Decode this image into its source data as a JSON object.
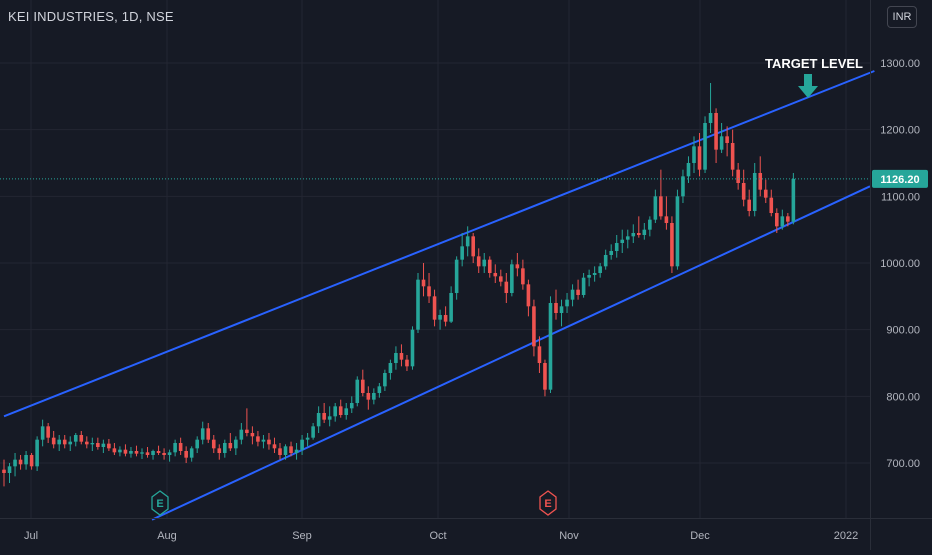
{
  "header": {
    "symbol_title": "KEI INDUSTRIES, 1D, NSE",
    "currency": "INR"
  },
  "colors": {
    "background": "#161a25",
    "up": "#26a69a",
    "down": "#ef5350",
    "channel": "#2962ff",
    "price_tag": "#26a69a",
    "grid": "#232632",
    "axis_text": "#b2b5be"
  },
  "chart_data": {
    "type": "candlestick",
    "title": "KEI INDUSTRIES, 1D, NSE",
    "ylim": [
      615,
      1330
    ],
    "y_ticks": [
      700,
      800,
      900,
      1000,
      1100,
      1200,
      1300
    ],
    "y_tick_labels": [
      "700.00",
      "800.00",
      "900.00",
      "1000.00",
      "1100.00",
      "1200.00",
      "1300.00"
    ],
    "x_labels": [
      "Jul",
      "Aug",
      "Sep",
      "Oct",
      "Nov",
      "Dec",
      "2022"
    ],
    "last_price": 1126.2,
    "last_price_label": "1126.20",
    "annotation": "TARGET LEVEL",
    "events": [
      {
        "label": "E",
        "month": "Aug",
        "type": "earnings"
      },
      {
        "label": "E",
        "month": "Nov",
        "type": "earnings"
      }
    ],
    "channel": {
      "upper": [
        {
          "idx": 0,
          "price": 770
        },
        {
          "idx": 145,
          "price": 1288
        }
      ],
      "lower": [
        {
          "idx": 25,
          "price": 615
        },
        {
          "idx": 145,
          "price": 1115
        }
      ]
    },
    "candles": [
      [
        690,
        705,
        665,
        685
      ],
      [
        685,
        700,
        670,
        695
      ],
      [
        695,
        715,
        680,
        705
      ],
      [
        705,
        712,
        690,
        698
      ],
      [
        698,
        718,
        690,
        712
      ],
      [
        712,
        715,
        690,
        695
      ],
      [
        695,
        740,
        688,
        735
      ],
      [
        735,
        765,
        725,
        755
      ],
      [
        755,
        760,
        730,
        738
      ],
      [
        738,
        748,
        722,
        728
      ],
      [
        728,
        742,
        718,
        735
      ],
      [
        735,
        742,
        722,
        728
      ],
      [
        728,
        740,
        718,
        732
      ],
      [
        732,
        745,
        725,
        742
      ],
      [
        742,
        748,
        728,
        732
      ],
      [
        732,
        740,
        722,
        728
      ],
      [
        728,
        738,
        718,
        730
      ],
      [
        730,
        738,
        720,
        724
      ],
      [
        724,
        735,
        715,
        729
      ],
      [
        729,
        736,
        718,
        722
      ],
      [
        722,
        730,
        712,
        716
      ],
      [
        716,
        725,
        710,
        720
      ],
      [
        720,
        728,
        710,
        714
      ],
      [
        714,
        724,
        708,
        718
      ],
      [
        718,
        726,
        710,
        714
      ],
      [
        714,
        722,
        706,
        716
      ],
      [
        716,
        724,
        708,
        712
      ],
      [
        712,
        720,
        705,
        718
      ],
      [
        718,
        726,
        712,
        715
      ],
      [
        715,
        722,
        705,
        712
      ],
      [
        712,
        720,
        702,
        716
      ],
      [
        716,
        735,
        710,
        730
      ],
      [
        730,
        738,
        712,
        718
      ],
      [
        718,
        725,
        700,
        708
      ],
      [
        708,
        725,
        702,
        722
      ],
      [
        722,
        740,
        715,
        735
      ],
      [
        735,
        762,
        728,
        752
      ],
      [
        752,
        760,
        730,
        735
      ],
      [
        735,
        742,
        715,
        722
      ],
      [
        722,
        728,
        705,
        715
      ],
      [
        715,
        735,
        708,
        730
      ],
      [
        730,
        745,
        718,
        722
      ],
      [
        722,
        740,
        712,
        735
      ],
      [
        735,
        760,
        728,
        750
      ],
      [
        750,
        782,
        740,
        745
      ],
      [
        745,
        755,
        728,
        740
      ],
      [
        740,
        748,
        725,
        732
      ],
      [
        732,
        742,
        722,
        735
      ],
      [
        735,
        745,
        720,
        728
      ],
      [
        728,
        738,
        715,
        722
      ],
      [
        722,
        730,
        705,
        712
      ],
      [
        712,
        728,
        705,
        725
      ],
      [
        725,
        732,
        710,
        715
      ],
      [
        715,
        730,
        705,
        720
      ],
      [
        720,
        742,
        712,
        735
      ],
      [
        735,
        745,
        725,
        738
      ],
      [
        738,
        760,
        735,
        755
      ],
      [
        755,
        785,
        745,
        775
      ],
      [
        775,
        790,
        760,
        765
      ],
      [
        765,
        785,
        755,
        770
      ],
      [
        770,
        790,
        762,
        785
      ],
      [
        785,
        795,
        768,
        772
      ],
      [
        772,
        790,
        765,
        782
      ],
      [
        782,
        800,
        775,
        790
      ],
      [
        790,
        830,
        785,
        825
      ],
      [
        825,
        840,
        800,
        805
      ],
      [
        805,
        815,
        780,
        795
      ],
      [
        795,
        812,
        788,
        805
      ],
      [
        805,
        820,
        798,
        815
      ],
      [
        815,
        840,
        808,
        835
      ],
      [
        835,
        855,
        825,
        850
      ],
      [
        850,
        875,
        840,
        865
      ],
      [
        865,
        878,
        845,
        855
      ],
      [
        855,
        862,
        838,
        845
      ],
      [
        845,
        905,
        840,
        900
      ],
      [
        900,
        985,
        895,
        975
      ],
      [
        975,
        1000,
        950,
        965
      ],
      [
        965,
        985,
        940,
        950
      ],
      [
        950,
        960,
        905,
        915
      ],
      [
        915,
        930,
        900,
        922
      ],
      [
        922,
        935,
        905,
        912
      ],
      [
        912,
        965,
        910,
        955
      ],
      [
        955,
        1010,
        945,
        1005
      ],
      [
        1005,
        1045,
        995,
        1025
      ],
      [
        1025,
        1055,
        1010,
        1040
      ],
      [
        1040,
        1045,
        1000,
        1010
      ],
      [
        1010,
        1022,
        985,
        995
      ],
      [
        995,
        1015,
        985,
        1005
      ],
      [
        1005,
        1010,
        978,
        985
      ],
      [
        985,
        998,
        970,
        980
      ],
      [
        980,
        990,
        965,
        972
      ],
      [
        972,
        985,
        940,
        955
      ],
      [
        955,
        1005,
        950,
        998
      ],
      [
        998,
        1015,
        980,
        992
      ],
      [
        992,
        1005,
        960,
        968
      ],
      [
        968,
        975,
        920,
        935
      ],
      [
        935,
        945,
        860,
        875
      ],
      [
        875,
        890,
        835,
        850
      ],
      [
        850,
        855,
        800,
        810
      ],
      [
        810,
        950,
        805,
        940
      ],
      [
        940,
        960,
        915,
        925
      ],
      [
        925,
        945,
        905,
        935
      ],
      [
        935,
        955,
        925,
        945
      ],
      [
        945,
        968,
        935,
        960
      ],
      [
        960,
        975,
        945,
        952
      ],
      [
        952,
        985,
        948,
        978
      ],
      [
        978,
        990,
        965,
        982
      ],
      [
        982,
        995,
        972,
        985
      ],
      [
        985,
        1000,
        978,
        995
      ],
      [
        995,
        1020,
        990,
        1012
      ],
      [
        1012,
        1028,
        1005,
        1018
      ],
      [
        1018,
        1042,
        1008,
        1030
      ],
      [
        1030,
        1050,
        1015,
        1035
      ],
      [
        1035,
        1050,
        1022,
        1040
      ],
      [
        1040,
        1058,
        1030,
        1045
      ],
      [
        1045,
        1070,
        1038,
        1042
      ],
      [
        1042,
        1060,
        1035,
        1050
      ],
      [
        1050,
        1070,
        1040,
        1065
      ],
      [
        1065,
        1110,
        1060,
        1100
      ],
      [
        1100,
        1140,
        1065,
        1070
      ],
      [
        1070,
        1100,
        1050,
        1060
      ],
      [
        1060,
        1070,
        985,
        995
      ],
      [
        995,
        1110,
        990,
        1100
      ],
      [
        1100,
        1140,
        1090,
        1130
      ],
      [
        1130,
        1160,
        1120,
        1150
      ],
      [
        1150,
        1190,
        1135,
        1175
      ],
      [
        1175,
        1195,
        1130,
        1140
      ],
      [
        1140,
        1220,
        1135,
        1210
      ],
      [
        1210,
        1270,
        1195,
        1225
      ],
      [
        1225,
        1232,
        1150,
        1170
      ],
      [
        1170,
        1210,
        1165,
        1190
      ],
      [
        1190,
        1205,
        1160,
        1180
      ],
      [
        1180,
        1200,
        1130,
        1140
      ],
      [
        1140,
        1150,
        1110,
        1120
      ],
      [
        1120,
        1140,
        1085,
        1095
      ],
      [
        1095,
        1110,
        1070,
        1078
      ],
      [
        1078,
        1150,
        1070,
        1135
      ],
      [
        1135,
        1160,
        1100,
        1110
      ],
      [
        1110,
        1125,
        1090,
        1098
      ],
      [
        1098,
        1110,
        1070,
        1075
      ],
      [
        1075,
        1082,
        1045,
        1055
      ],
      [
        1055,
        1080,
        1050,
        1070
      ],
      [
        1070,
        1075,
        1055,
        1062
      ],
      [
        1062,
        1135,
        1058,
        1126.2
      ]
    ]
  }
}
